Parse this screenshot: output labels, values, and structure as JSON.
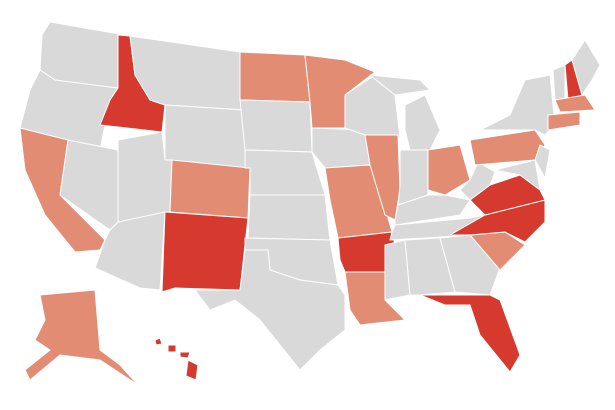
{
  "map": {
    "fill_colors": {
      "high": "#d63a2f",
      "medium": "#e38c74",
      "none": "#d9d9d9"
    },
    "border_color": "#ffffff"
  }
}
